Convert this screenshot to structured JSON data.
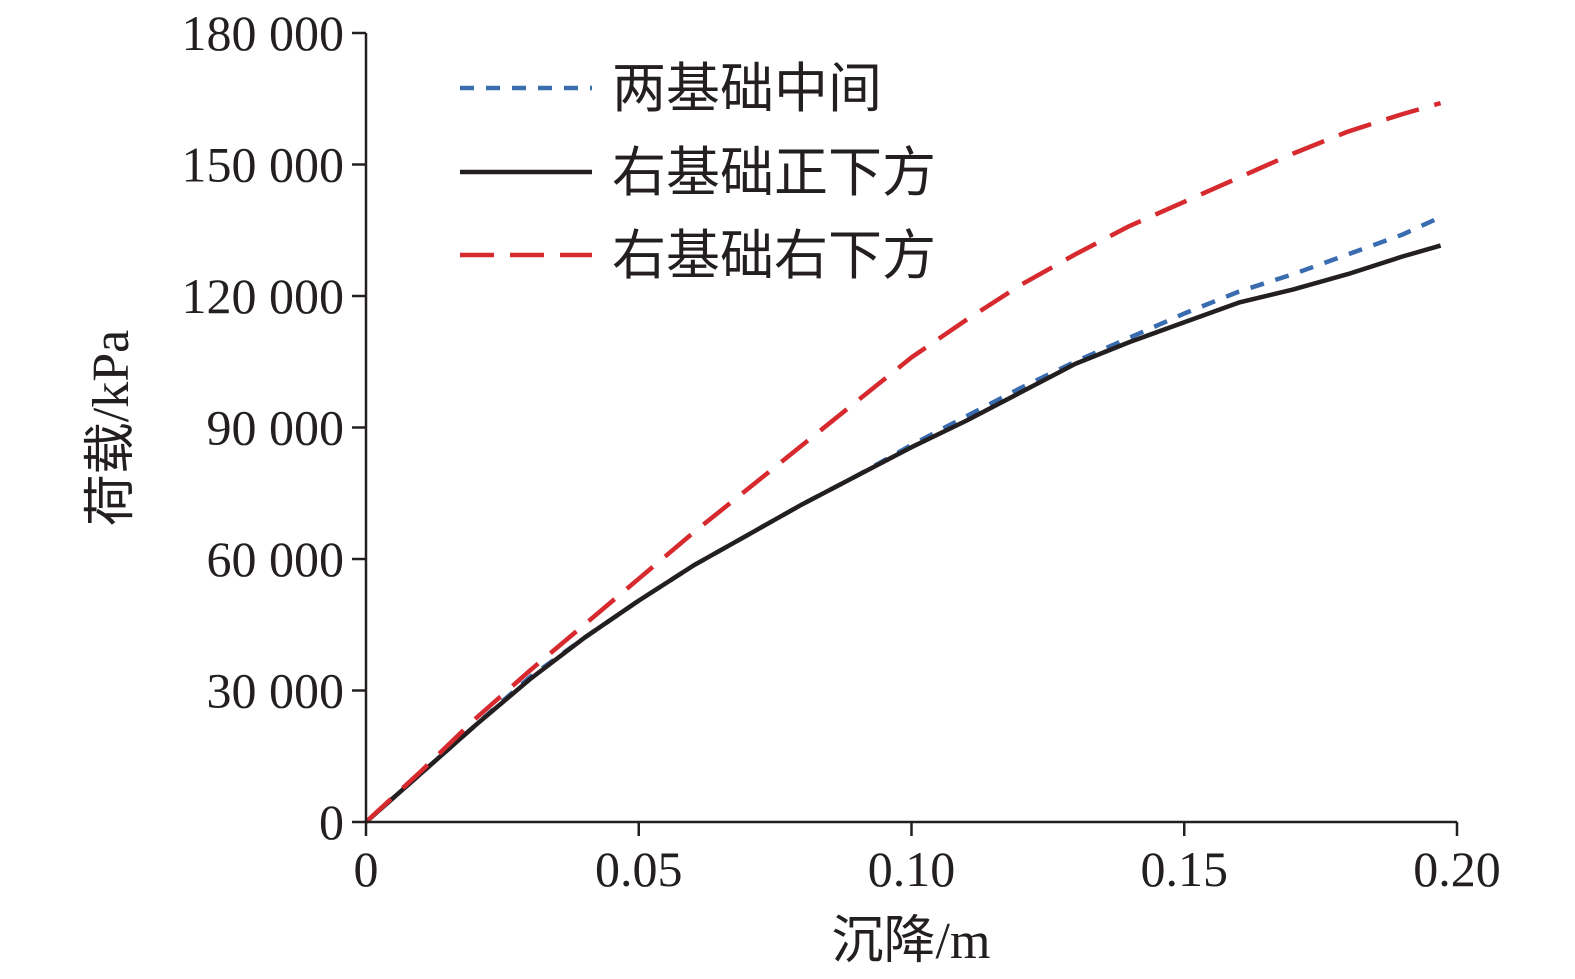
{
  "chart_data": {
    "type": "line",
    "xlabel": "沉降/m",
    "ylabel": "荷载/kPa",
    "xlim": [
      0,
      0.2
    ],
    "ylim": [
      0,
      180000
    ],
    "x_ticks": [
      "0",
      "0.05",
      "0.10",
      "0.15",
      "0.20"
    ],
    "y_ticks": [
      "0",
      "30 000",
      "60 000",
      "90 000",
      "120 000",
      "150 000",
      "180 000"
    ],
    "grid": false,
    "legend_position": "top-left",
    "series": [
      {
        "name": "两基础中间",
        "color": "#3a6cb0",
        "style": "short-dash",
        "x": [
          0,
          0.01,
          0.02,
          0.03,
          0.04,
          0.05,
          0.06,
          0.07,
          0.08,
          0.09,
          0.1,
          0.11,
          0.12,
          0.13,
          0.14,
          0.15,
          0.16,
          0.17,
          0.18,
          0.19,
          0.197
        ],
        "y": [
          0,
          11000,
          22000,
          33000,
          42000,
          50500,
          58500,
          65500,
          72500,
          79000,
          86000,
          92500,
          99000,
          105000,
          110500,
          116000,
          121000,
          125000,
          129500,
          134000,
          138000
        ]
      },
      {
        "name": "右基础正下方",
        "color": "#231f20",
        "style": "solid",
        "x": [
          0,
          0.01,
          0.02,
          0.03,
          0.04,
          0.05,
          0.06,
          0.07,
          0.08,
          0.09,
          0.1,
          0.11,
          0.12,
          0.13,
          0.14,
          0.15,
          0.16,
          0.17,
          0.18,
          0.19,
          0.197
        ],
        "y": [
          0,
          11000,
          22000,
          32500,
          42000,
          50500,
          58500,
          65500,
          72500,
          79000,
          85500,
          91500,
          98000,
          104500,
          109500,
          114000,
          118500,
          121500,
          125000,
          129000,
          131500
        ]
      },
      {
        "name": "右基础右下方",
        "color": "#d62a2f",
        "style": "long-dash",
        "x": [
          0,
          0.01,
          0.02,
          0.03,
          0.04,
          0.05,
          0.06,
          0.07,
          0.08,
          0.09,
          0.1,
          0.11,
          0.12,
          0.13,
          0.14,
          0.15,
          0.16,
          0.17,
          0.18,
          0.19,
          0.197
        ],
        "y": [
          0,
          11500,
          23500,
          34500,
          45000,
          55500,
          66000,
          76000,
          86000,
          96000,
          106000,
          114500,
          122500,
          129500,
          136000,
          141500,
          147000,
          152500,
          157500,
          161500,
          164000
        ]
      }
    ]
  }
}
